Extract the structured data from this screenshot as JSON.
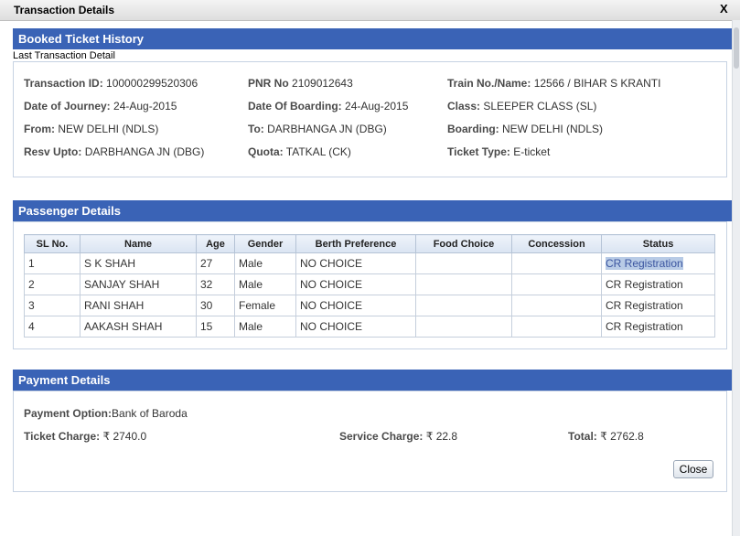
{
  "dialog": {
    "title": "Transaction Details",
    "close_glyph": "X"
  },
  "booked": {
    "header": "Booked Ticket History",
    "sublabel": "Last Transaction Detail",
    "fields": {
      "txn_label": "Transaction ID:",
      "txn_value": "100000299520306",
      "pnr_label": "PNR No",
      "pnr_value": "2109012643",
      "train_label": "Train No./Name:",
      "train_value": "12566 /  BIHAR S KRANTI",
      "doj_label": "Date of Journey:",
      "doj_value": "24-Aug-2015",
      "dob_label": "Date Of Boarding:",
      "dob_value": "24-Aug-2015",
      "class_label": "Class:",
      "class_value": "SLEEPER CLASS (SL)",
      "from_label": "From:",
      "from_value": "NEW DELHI (NDLS)",
      "to_label": "To:",
      "to_value": "DARBHANGA JN (DBG)",
      "boarding_label": "Boarding:",
      "boarding_value": "NEW DELHI (NDLS)",
      "resv_label": "Resv Upto:",
      "resv_value": "DARBHANGA JN (DBG)",
      "quota_label": "Quota:",
      "quota_value": "TATKAL (CK)",
      "ttype_label": "Ticket Type:",
      "ttype_value": "E-ticket"
    }
  },
  "passengers": {
    "header": "Passenger Details",
    "columns": [
      "SL No.",
      "Name",
      "Age",
      "Gender",
      "Berth Preference",
      "Food Choice",
      "Concession",
      "Status"
    ],
    "rows": [
      [
        "1",
        "S K SHAH",
        "27",
        "Male",
        "NO CHOICE",
        "",
        "",
        "CR Registration"
      ],
      [
        "2",
        "SANJAY SHAH",
        "32",
        "Male",
        "NO CHOICE",
        "",
        "",
        "CR Registration"
      ],
      [
        "3",
        "RANI SHAH",
        "30",
        "Female",
        "NO CHOICE",
        "",
        "",
        "CR Registration"
      ],
      [
        "4",
        "AAKASH SHAH",
        "15",
        "Male",
        "NO CHOICE",
        "",
        "",
        "CR Registration"
      ]
    ]
  },
  "payment": {
    "header": "Payment Details",
    "option_label": "Payment Option:",
    "option_value": "Bank of Baroda",
    "ticket_label": "Ticket Charge:",
    "ticket_value": "₹ 2740.0",
    "service_label": "Service Charge:",
    "service_value": "₹ 22.8",
    "total_label": "Total:",
    "total_value": "₹ 2762.8",
    "close_label": "Close"
  },
  "colors": {
    "header_bg": "#3a63b6",
    "selection": "#b8cbe6"
  }
}
